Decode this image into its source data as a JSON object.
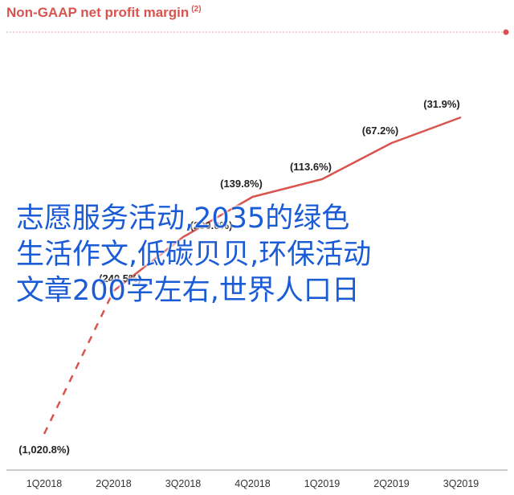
{
  "chart_data": {
    "type": "line",
    "title": "Non-GAAP net profit margin",
    "title_footnote": "(2)",
    "categories": [
      "1Q2018",
      "2Q2018",
      "3Q2018",
      "4Q2018",
      "1Q2019",
      "2Q2019",
      "3Q2019"
    ],
    "series": [
      {
        "values": [
          -1020.8,
          -240.5,
          -200.0,
          -139.8,
          -113.6,
          -67.2,
          -31.9
        ],
        "labels": [
          "(1,020.8%)",
          "(240.5%)",
          "(200.0%)",
          "(139.8%)",
          "(113.6%)",
          "(67.2%)",
          "(31.9%)"
        ]
      }
    ],
    "line_style": {
      "1Q2018-2Q2018": "dashed",
      "rest": "solid"
    },
    "grid": false,
    "legend": "none",
    "colors": {
      "title": "#d9534f",
      "line": "#d9534f",
      "overlay_text": "#1a5bd6"
    }
  },
  "overlay": {
    "lines": [
      "志愿服务活动,2035的绿色",
      "生活作文,低碳贝贝,环保活动",
      "文章200字左右,世界人口日"
    ]
  }
}
